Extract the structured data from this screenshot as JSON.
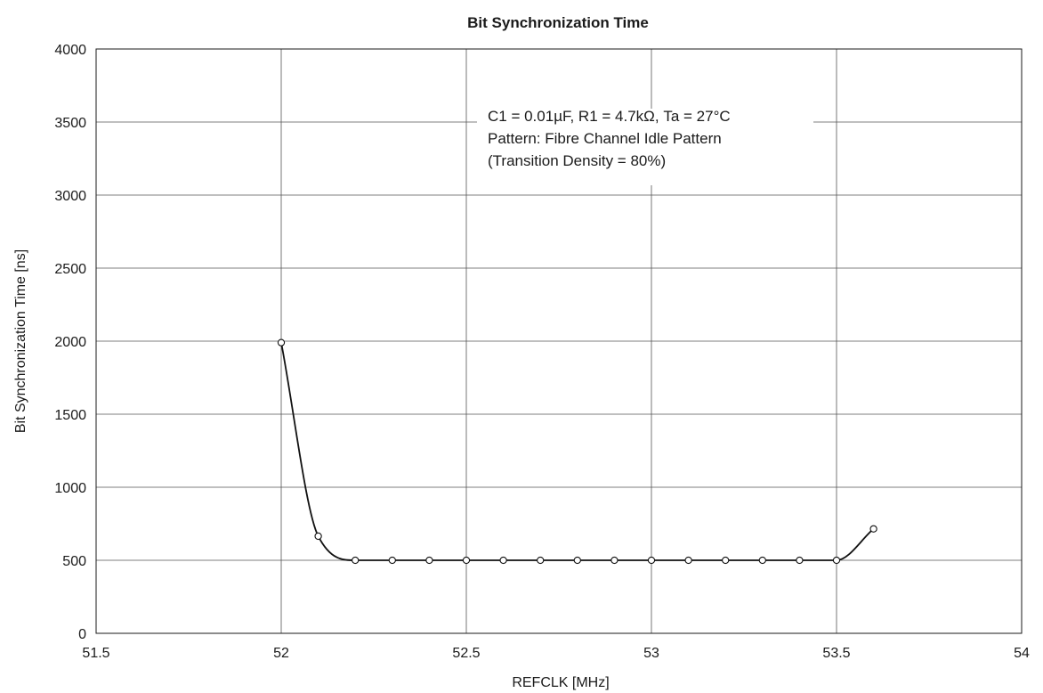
{
  "chart_data": {
    "type": "line",
    "title": "Bit Synchronization Time",
    "xlabel": "REFCLK [MHz]",
    "ylabel": "Bit Synchronization Time [ns]",
    "xlim": [
      51.5,
      54
    ],
    "ylim": [
      0,
      4000
    ],
    "x_ticks": [
      51.5,
      52,
      52.5,
      53,
      53.5,
      54
    ],
    "x_tick_labels": [
      "51.5",
      "52",
      "52.5",
      "53",
      "53.5",
      "54"
    ],
    "y_ticks": [
      0,
      500,
      1000,
      1500,
      2000,
      2500,
      3000,
      3500,
      4000
    ],
    "y_tick_labels": [
      "0",
      "500",
      "1000",
      "1500",
      "2000",
      "2500",
      "3000",
      "3500",
      "4000"
    ],
    "grid": true,
    "legend": "none",
    "annotation": {
      "lines": [
        "C1 = 0.01µF, R1 = 4.7kΩ, Ta = 27°C",
        "Pattern: Fibre Channel Idle Pattern",
        "(Transition Density = 80%)"
      ]
    },
    "series": [
      {
        "x": [
          52.0,
          52.1,
          52.2,
          52.3,
          52.4,
          52.5,
          52.6,
          52.7,
          52.8,
          52.9,
          53.0,
          53.1,
          53.2,
          53.3,
          53.4,
          53.5,
          53.6
        ],
        "values": [
          1990,
          665,
          500,
          500,
          500,
          500,
          500,
          500,
          500,
          500,
          500,
          500,
          500,
          500,
          500,
          500,
          715
        ]
      }
    ]
  }
}
